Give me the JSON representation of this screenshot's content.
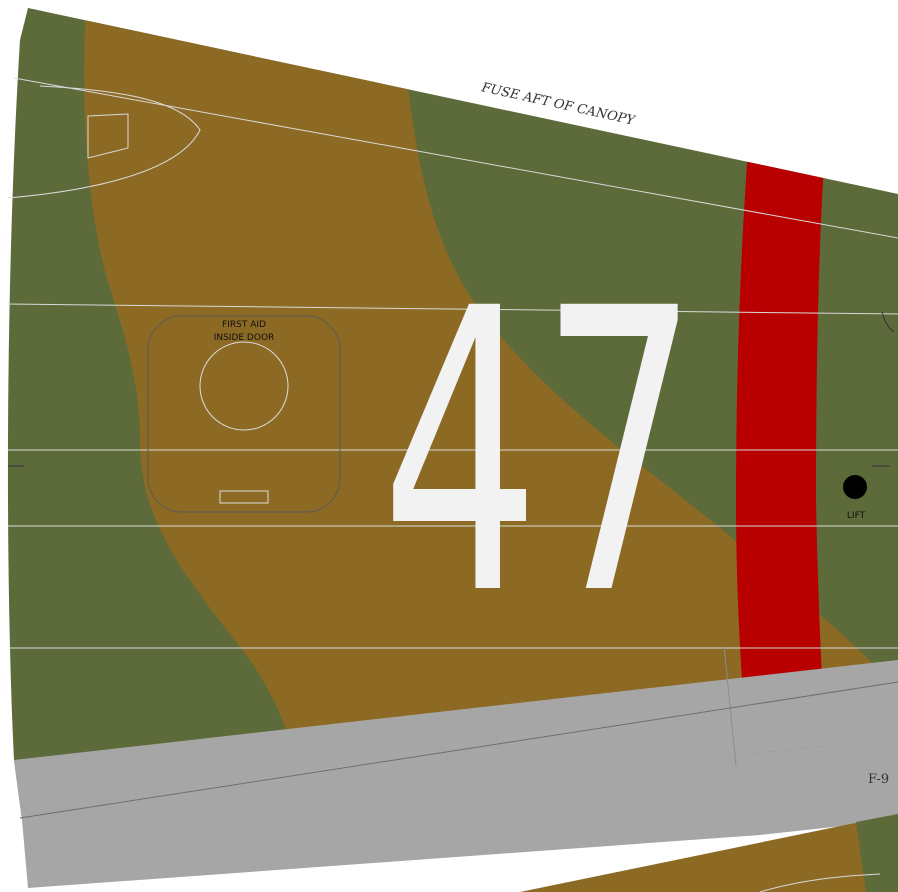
{
  "sheet": {
    "section_title": "FUSE AFT OF CANOPY",
    "aircraft_number": "47",
    "first_aid_label_line1": "FIRST AID",
    "first_aid_label_line2": "INSIDE DOOR",
    "lift_label": "LIFT",
    "page_code": "F-9"
  },
  "colors": {
    "olive_green": "#5d6b3b",
    "dark_earth": "#8c6a24",
    "sky_band_red": "#b80000",
    "underside_grey": "#a6a6a6",
    "number_fill": "#f2f2f2",
    "panel_line": "#d9d9d9"
  }
}
